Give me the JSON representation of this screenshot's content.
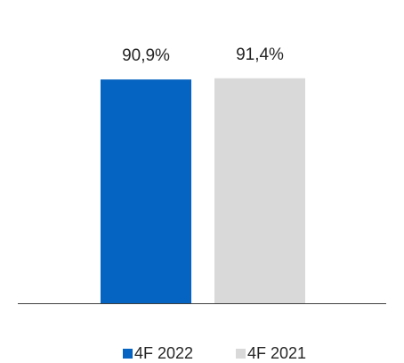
{
  "chart_data": {
    "type": "bar",
    "categories": [
      null
    ],
    "series": [
      {
        "name": "4F 2022",
        "color": "#0563c1",
        "values": [
          90.9
        ],
        "value_labels": [
          "90,9%"
        ]
      },
      {
        "name": "4F 2021",
        "color": "#d9d9d9",
        "values": [
          91.4
        ],
        "value_labels": [
          "91,4%"
        ]
      }
    ],
    "ylim": [
      0,
      100
    ],
    "legend": "bottom"
  }
}
